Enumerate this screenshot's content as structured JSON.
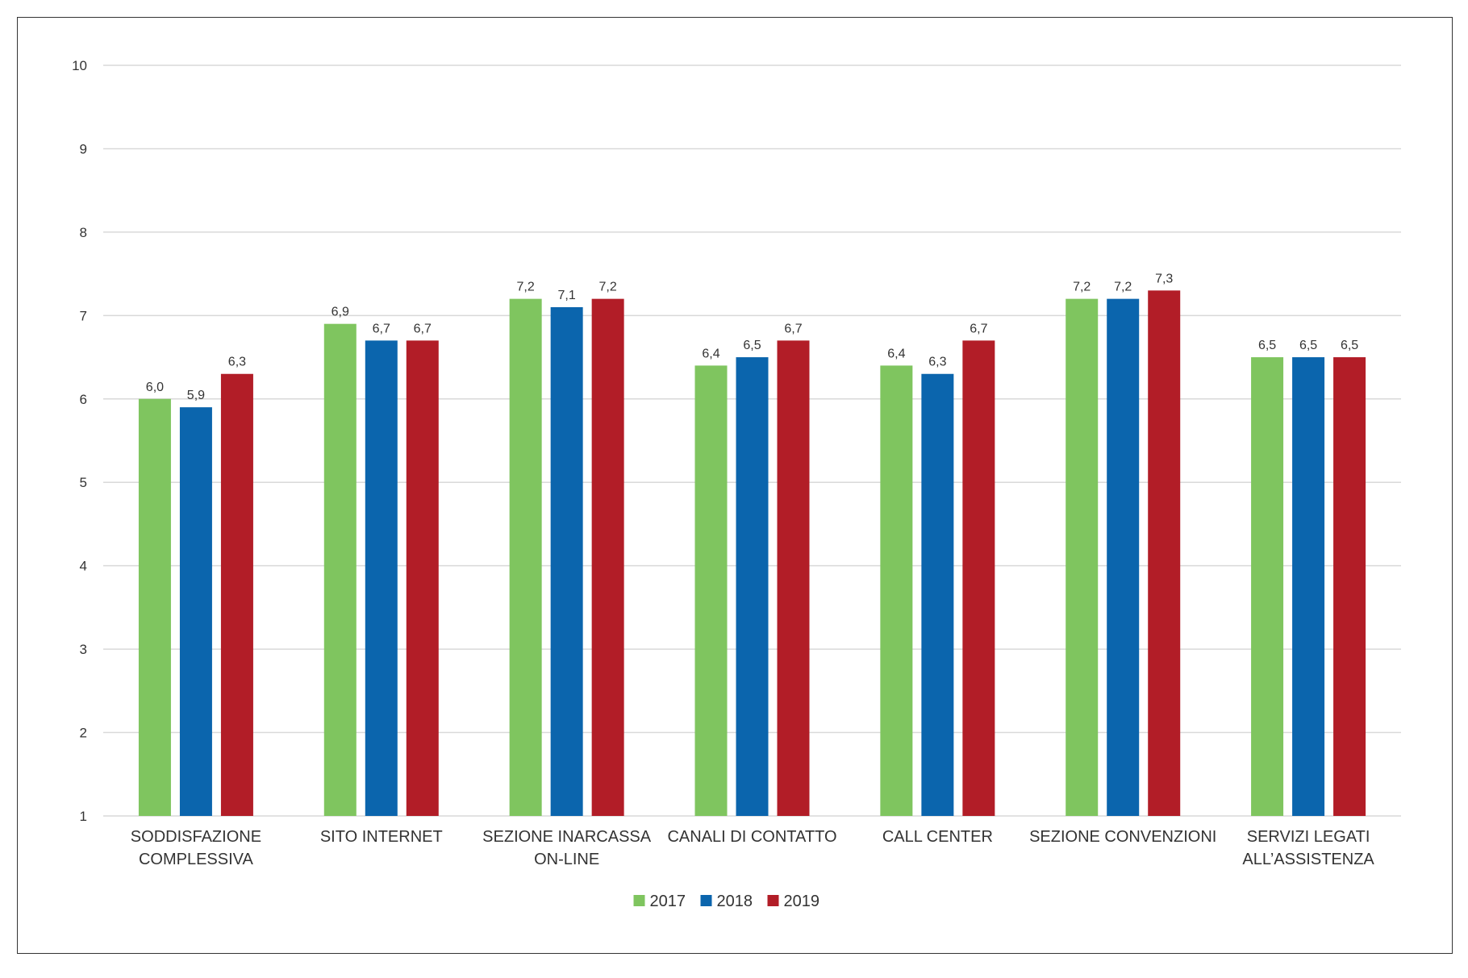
{
  "chart_data": {
    "type": "bar",
    "categories": [
      [
        "SODDISFAZIONE",
        "COMPLESSIVA"
      ],
      [
        "SITO INTERNET"
      ],
      [
        "SEZIONE INARCASSA",
        "ON-LINE"
      ],
      [
        "CANALI DI CONTATTO"
      ],
      [
        "CALL CENTER"
      ],
      [
        "SEZIONE CONVENZIONI"
      ],
      [
        "SERVIZI LEGATI",
        "ALL’ASSISTENZA"
      ]
    ],
    "series": [
      {
        "name": "2017",
        "color": "#7fc55f",
        "values": [
          6.0,
          6.9,
          7.2,
          6.4,
          6.4,
          7.2,
          6.5
        ],
        "labels": [
          "6,0",
          "6,9",
          "7,2",
          "6,4",
          "6,4",
          "7,2",
          "6,5"
        ]
      },
      {
        "name": "2018",
        "color": "#0b65ad",
        "values": [
          5.9,
          6.7,
          7.1,
          6.5,
          6.3,
          7.2,
          6.5
        ],
        "labels": [
          "5,9",
          "6,7",
          "7,1",
          "6,5",
          "6,3",
          "7,2",
          "6,5"
        ]
      },
      {
        "name": "2019",
        "color": "#b21d27",
        "values": [
          6.3,
          6.7,
          7.2,
          6.7,
          6.7,
          7.3,
          6.5
        ],
        "labels": [
          "6,3",
          "6,7",
          "7,2",
          "6,7",
          "6,7",
          "7,3",
          "6,5"
        ]
      }
    ],
    "ylim": [
      1,
      10
    ],
    "yticks": [
      "1",
      "2",
      "3",
      "4",
      "5",
      "6",
      "7",
      "8",
      "9",
      "10"
    ],
    "grid": true,
    "legend_position": "bottom-center"
  }
}
